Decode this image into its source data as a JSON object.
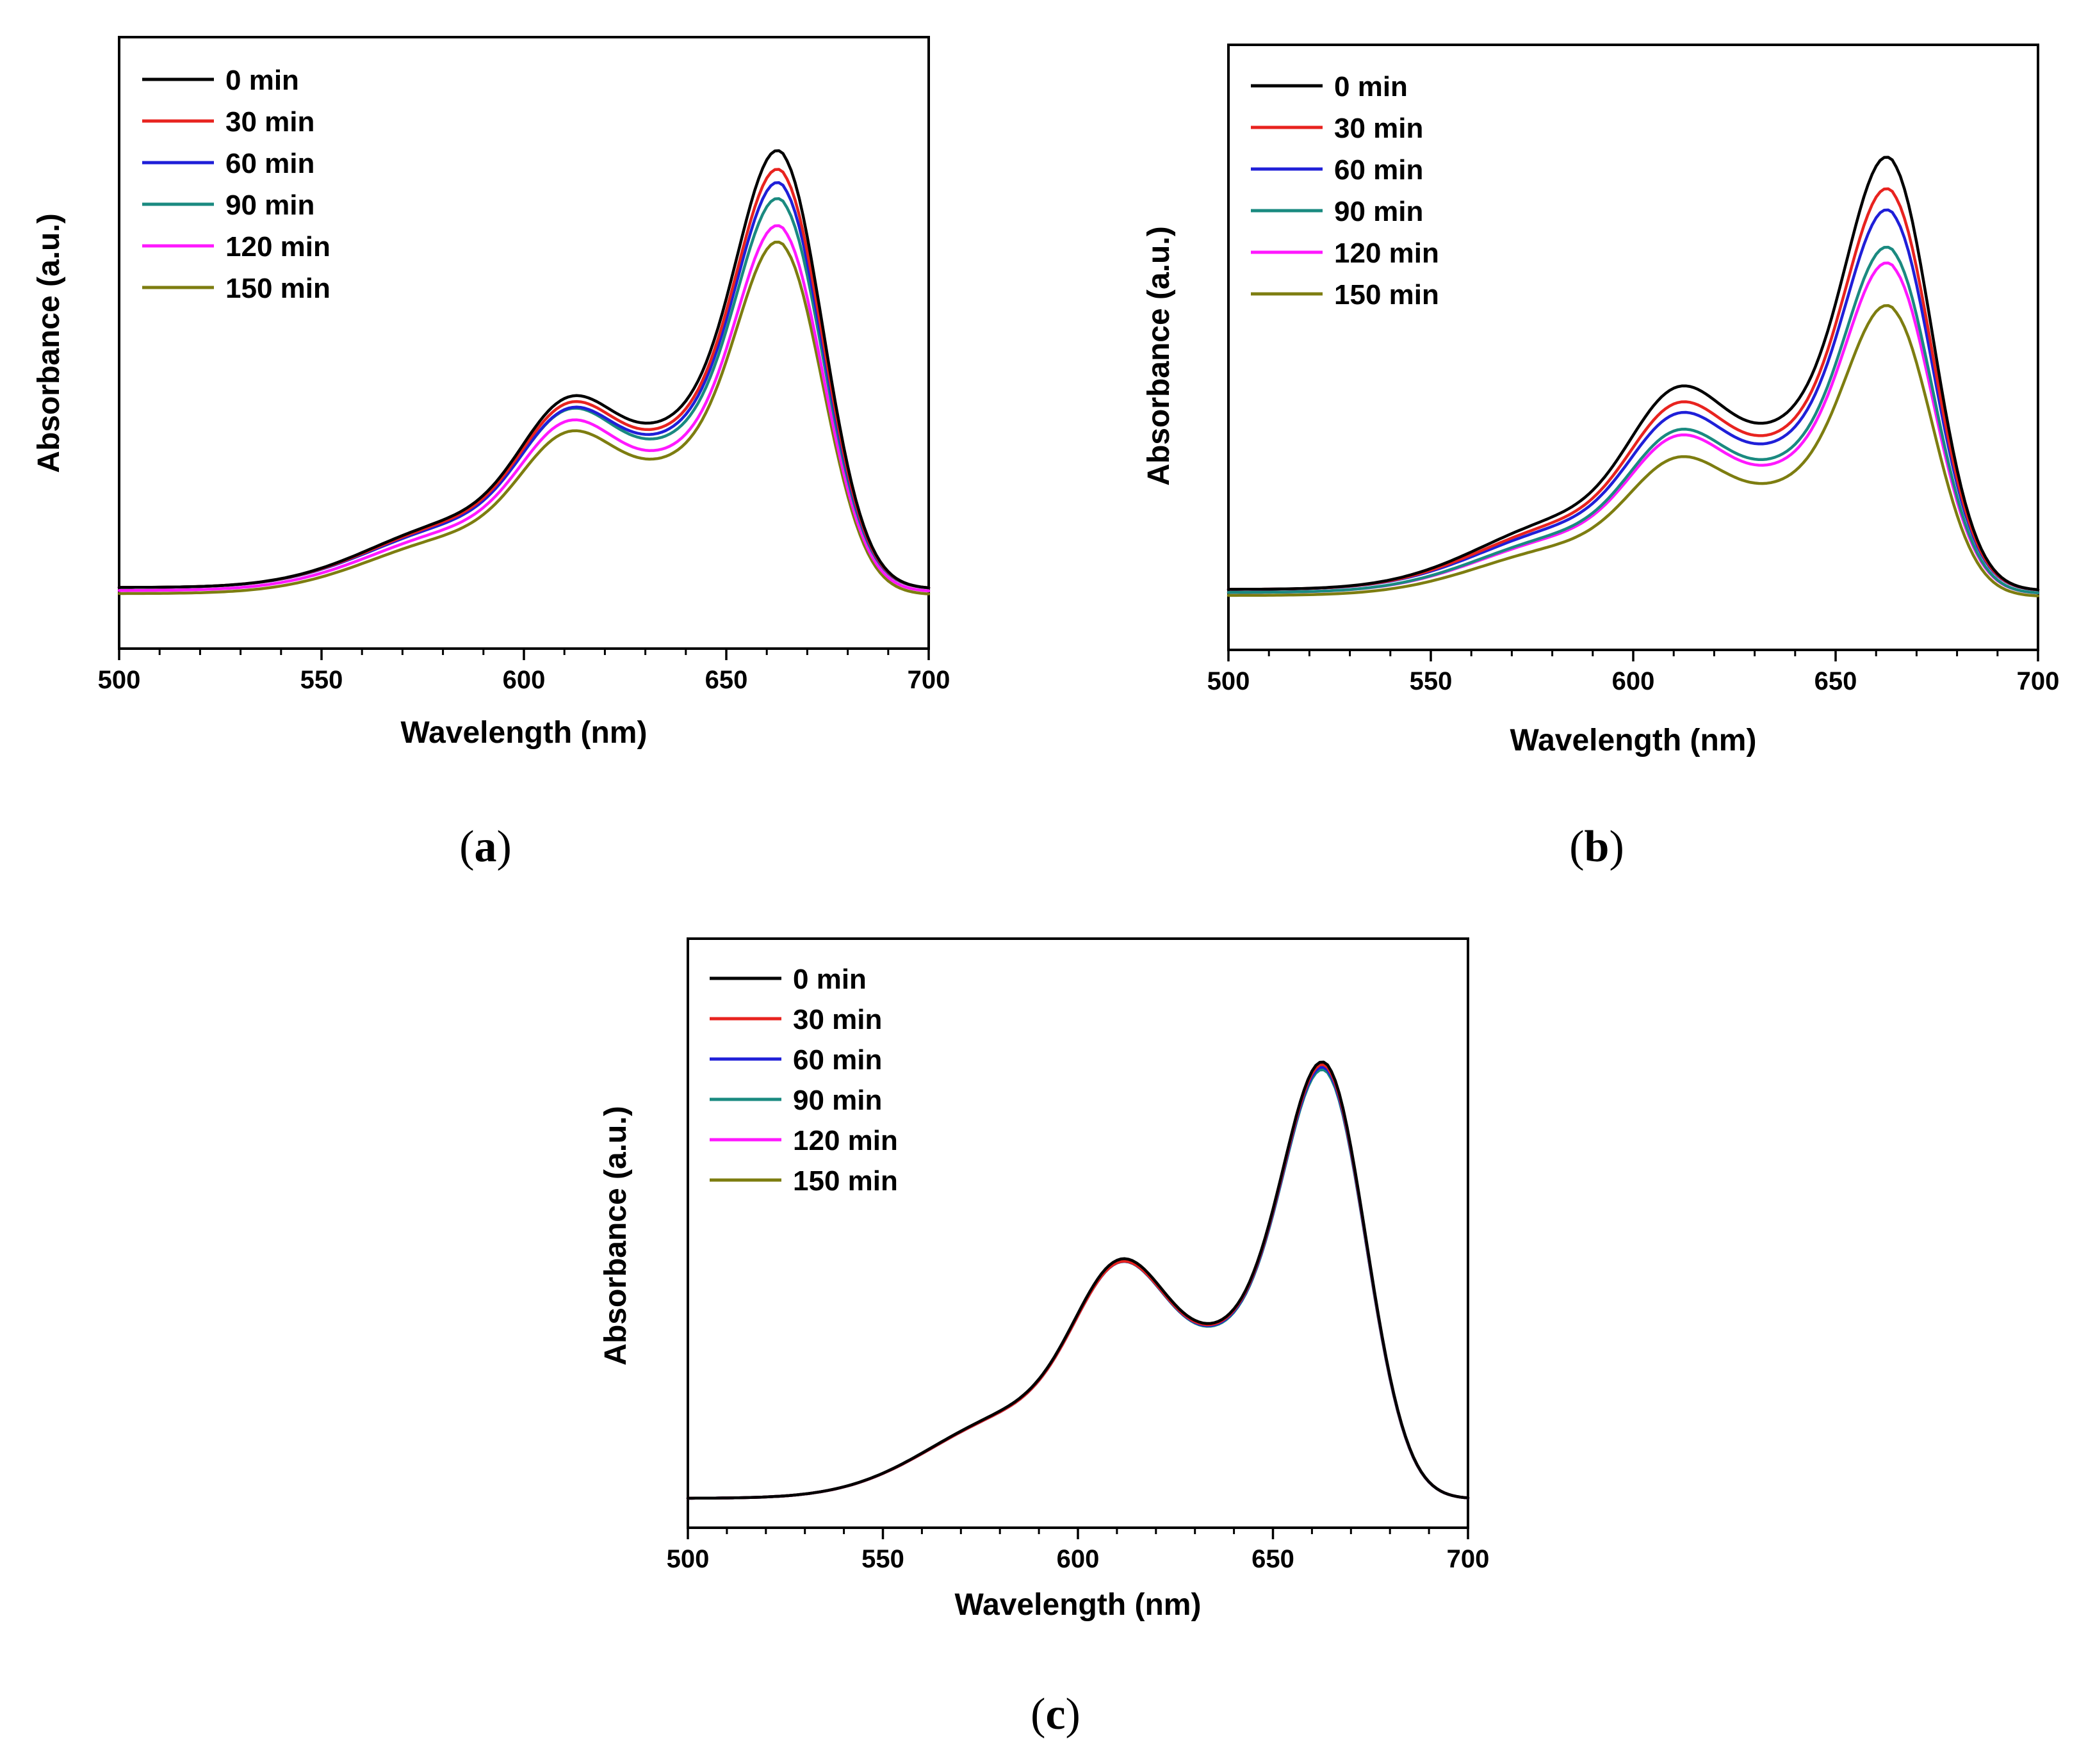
{
  "figure": {
    "panels": [
      "a",
      "b",
      "c"
    ]
  },
  "colors": {
    "0 min": "#000000",
    "30 min": "#e8231f",
    "60 min": "#1f1fd8",
    "90 min": "#1a8a80",
    "120 min": "#ff18ff",
    "150 min": "#7d7d10"
  },
  "chart_data": [
    {
      "type": "line",
      "panel_label": "a",
      "title": "",
      "xlabel": "Wavelength (nm)",
      "ylabel": "Absorbance (a.u.)",
      "xlim": [
        500,
        700
      ],
      "ylim": [
        0,
        1.0
      ],
      "x_ticks": [
        "500",
        "550",
        "600",
        "650",
        "700"
      ],
      "legend_position": "top-left",
      "series": [
        {
          "name": "0 min",
          "peak": 0.92,
          "shoulder": 0.45,
          "base": 0.1
        },
        {
          "name": "30 min",
          "peak": 0.885,
          "shoulder": 0.44,
          "base": 0.1
        },
        {
          "name": "60 min",
          "peak": 0.86,
          "shoulder": 0.43,
          "base": 0.1
        },
        {
          "name": "90 min",
          "peak": 0.83,
          "shoulder": 0.43,
          "base": 0.1
        },
        {
          "name": "120 min",
          "peak": 0.78,
          "shoulder": 0.41,
          "base": 0.095
        },
        {
          "name": "150 min",
          "peak": 0.75,
          "shoulder": 0.39,
          "base": 0.09
        }
      ]
    },
    {
      "type": "line",
      "panel_label": "b",
      "title": "",
      "xlabel": "Wavelength (nm)",
      "ylabel": "Absorbance (a.u.)",
      "xlim": [
        500,
        700
      ],
      "ylim": [
        0,
        1.0
      ],
      "x_ticks": [
        "500",
        "550",
        "600",
        "650",
        "700"
      ],
      "legend_position": "top-left",
      "series": [
        {
          "name": "0 min",
          "peak": 0.92,
          "shoulder": 0.48,
          "base": 0.1
        },
        {
          "name": "30 min",
          "peak": 0.86,
          "shoulder": 0.45,
          "base": 0.1
        },
        {
          "name": "60 min",
          "peak": 0.82,
          "shoulder": 0.43,
          "base": 0.1
        },
        {
          "name": "90 min",
          "peak": 0.75,
          "shoulder": 0.4,
          "base": 0.095
        },
        {
          "name": "120 min",
          "peak": 0.72,
          "shoulder": 0.39,
          "base": 0.095
        },
        {
          "name": "150 min",
          "peak": 0.64,
          "shoulder": 0.35,
          "base": 0.09
        }
      ]
    },
    {
      "type": "line",
      "panel_label": "c",
      "title": "",
      "xlabel": "Wavelength (nm)",
      "ylabel": "Absorbance (a.u.)",
      "xlim": [
        500,
        700
      ],
      "ylim": [
        0,
        1.0
      ],
      "x_ticks": [
        "500",
        "550",
        "600",
        "650",
        "700"
      ],
      "legend_position": "top-left",
      "series": [
        {
          "name": "0 min",
          "peak": 0.9,
          "shoulder": 0.52,
          "base": 0.05
        },
        {
          "name": "30 min",
          "peak": 0.895,
          "shoulder": 0.515,
          "base": 0.05
        },
        {
          "name": "60 min",
          "peak": 0.89,
          "shoulder": 0.515,
          "base": 0.05
        },
        {
          "name": "90 min",
          "peak": 0.885,
          "shoulder": 0.515,
          "base": 0.05
        },
        {
          "name": "120 min",
          "peak": 0.89,
          "shoulder": 0.515,
          "base": 0.05
        },
        {
          "name": "150 min",
          "peak": 0.887,
          "shoulder": 0.515,
          "base": 0.05
        }
      ]
    }
  ]
}
